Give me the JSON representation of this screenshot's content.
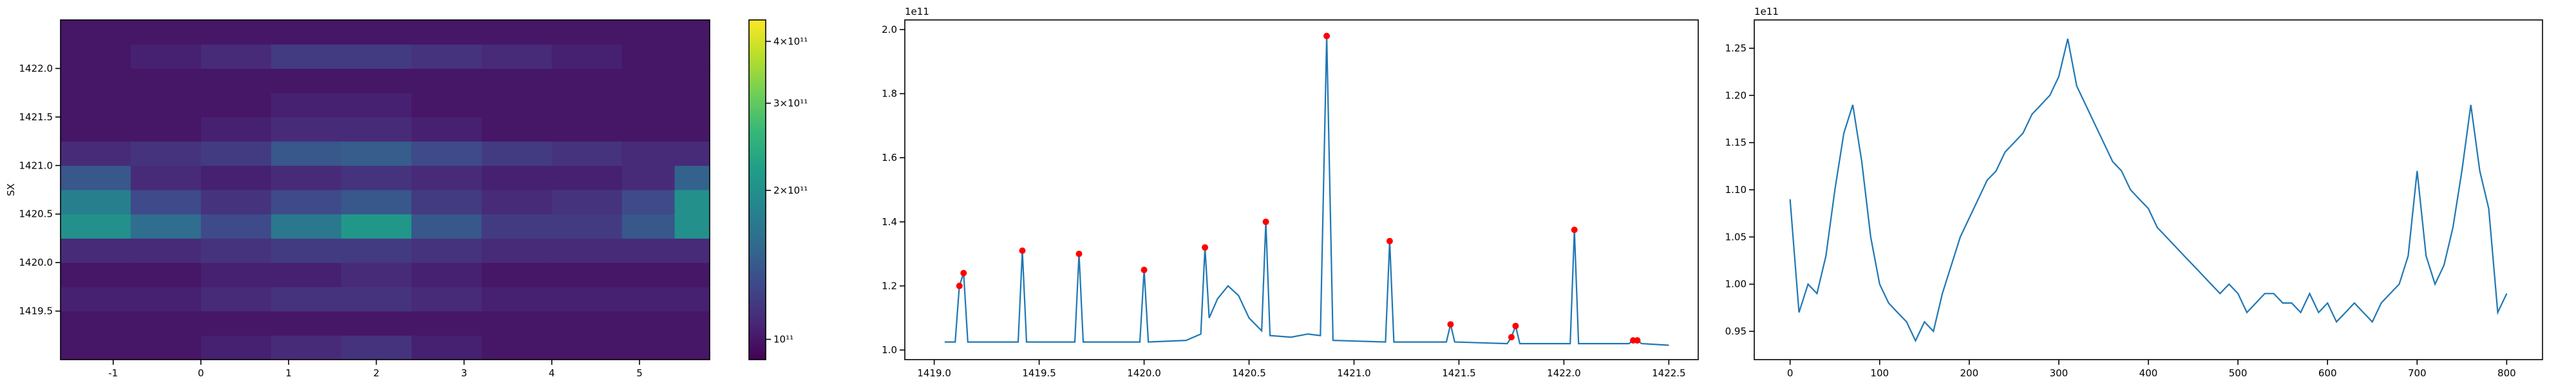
{
  "chart_data": [
    {
      "type": "heatmap",
      "ylabel": "SX",
      "xbins": [
        -1.6,
        -0.8,
        0,
        0.8,
        1.6,
        2.4,
        3.2,
        4.0,
        4.8,
        5.4,
        5.8
      ],
      "ybins": [
        1419.0,
        1419.25,
        1419.5,
        1419.75,
        1420.0,
        1420.25,
        1420.5,
        1420.75,
        1421.0,
        1421.25,
        1421.5,
        1421.75,
        1422.0,
        1422.25,
        1422.5
      ],
      "values": [
        [
          1.0,
          1.0,
          1.05,
          1.1,
          1.15,
          1.05,
          1.0,
          1.0,
          1.0,
          1.0
        ],
        [
          1.0,
          1.0,
          1.0,
          1.0,
          1.0,
          1.0,
          1.0,
          1.0,
          1.0,
          1.0
        ],
        [
          1.05,
          1.05,
          1.1,
          1.15,
          1.15,
          1.1,
          1.05,
          1.05,
          1.05,
          1.05
        ],
        [
          1.0,
          1.0,
          1.05,
          1.05,
          1.1,
          1.05,
          1.0,
          1.0,
          1.0,
          1.0
        ],
        [
          1.1,
          1.1,
          1.15,
          1.2,
          1.2,
          1.15,
          1.1,
          1.1,
          1.1,
          1.1
        ],
        [
          2.0,
          1.6,
          1.3,
          1.7,
          2.1,
          1.4,
          1.2,
          1.2,
          1.4,
          2.0
        ],
        [
          1.8,
          1.3,
          1.15,
          1.3,
          1.4,
          1.2,
          1.1,
          1.15,
          1.3,
          2.0
        ],
        [
          1.4,
          1.1,
          1.05,
          1.1,
          1.15,
          1.1,
          1.05,
          1.05,
          1.1,
          1.5
        ],
        [
          1.1,
          1.15,
          1.2,
          1.4,
          1.45,
          1.3,
          1.2,
          1.15,
          1.1,
          1.1
        ],
        [
          1.0,
          1.0,
          1.05,
          1.1,
          1.1,
          1.05,
          1.0,
          1.0,
          1.0,
          1.0
        ],
        [
          1.0,
          1.0,
          1.0,
          1.05,
          1.05,
          1.0,
          1.0,
          1.0,
          1.0,
          1.0
        ],
        [
          1.0,
          1.0,
          1.0,
          1.0,
          1.0,
          1.0,
          1.0,
          1.0,
          1.0,
          1.0
        ],
        [
          1.0,
          1.05,
          1.1,
          1.2,
          1.2,
          1.15,
          1.1,
          1.05,
          1.0,
          1.0
        ],
        [
          1.0,
          1.0,
          1.0,
          1.0,
          1.0,
          1.0,
          1.0,
          1.0,
          1.0,
          1.0
        ]
      ],
      "xlim": [
        -1.6,
        5.8
      ],
      "xticks": [
        -1,
        0,
        1,
        2,
        3,
        4,
        5
      ],
      "ylim": [
        1419.0,
        1422.5
      ],
      "yticks": [
        1419.5,
        {
          "value": 1420.0,
          "label": "1420.0"
        },
        1420.5,
        {
          "value": 1421.0,
          "label": "1421.0"
        },
        1421.5,
        {
          "value": 1422.0,
          "label": "1422.0"
        }
      ],
      "colorbar": {
        "scale": "log",
        "lim": [
          0.91,
          4.42
        ],
        "ticks": [
          {
            "value": 1,
            "label": "10¹¹"
          },
          {
            "value": 2,
            "label": "2×10¹¹"
          },
          {
            "value": 3,
            "label": "3×10¹¹"
          },
          {
            "value": 4,
            "label": "4×10¹¹"
          }
        ]
      }
    },
    {
      "type": "line",
      "offset_text": "1e11",
      "color": "#1f77b4",
      "x": [
        1419.05,
        1419.1,
        1419.12,
        1419.14,
        1419.16,
        1419.4,
        1419.42,
        1419.44,
        1419.67,
        1419.69,
        1419.71,
        1419.98,
        1420.0,
        1420.02,
        1420.2,
        1420.27,
        1420.29,
        1420.31,
        1420.35,
        1420.4,
        1420.45,
        1420.5,
        1420.56,
        1420.58,
        1420.6,
        1420.7,
        1420.78,
        1420.84,
        1420.87,
        1420.9,
        1421.15,
        1421.17,
        1421.19,
        1421.44,
        1421.46,
        1421.48,
        1421.73,
        1421.75,
        1421.77,
        1421.79,
        1422.03,
        1422.05,
        1422.07,
        1422.31,
        1422.33,
        1422.35,
        1422.37,
        1422.5
      ],
      "values": [
        1.025,
        1.025,
        1.2,
        1.24,
        1.025,
        1.025,
        1.31,
        1.025,
        1.025,
        1.3,
        1.025,
        1.025,
        1.25,
        1.025,
        1.03,
        1.05,
        1.32,
        1.1,
        1.16,
        1.2,
        1.17,
        1.1,
        1.06,
        1.4,
        1.045,
        1.04,
        1.05,
        1.045,
        1.98,
        1.03,
        1.025,
        1.34,
        1.025,
        1.025,
        1.08,
        1.025,
        1.02,
        1.04,
        1.075,
        1.02,
        1.02,
        1.375,
        1.02,
        1.02,
        1.03,
        1.03,
        1.02,
        1.015
      ],
      "peaks": {
        "color": "red",
        "x": [
          1419.12,
          1419.14,
          1419.42,
          1419.69,
          1420.0,
          1420.29,
          1420.58,
          1420.87,
          1421.17,
          1421.46,
          1421.75,
          1421.77,
          1422.05,
          1422.33,
          1422.35
        ],
        "values": [
          1.2,
          1.24,
          1.31,
          1.3,
          1.25,
          1.32,
          1.4,
          1.98,
          1.34,
          1.08,
          1.04,
          1.075,
          1.375,
          1.03,
          1.03
        ]
      },
      "xlim": [
        1418.86,
        1422.64
      ],
      "xticks": [
        {
          "value": 1419.0,
          "label": "1419.0"
        },
        1419.5,
        {
          "value": 1420.0,
          "label": "1420.0"
        },
        1420.5,
        {
          "value": 1421.0,
          "label": "1421.0"
        },
        1421.5,
        {
          "value": 1422.0,
          "label": "1422.0"
        },
        1422.5
      ],
      "ylim": [
        0.97,
        2.03
      ],
      "yticks": [
        {
          "value": 1.0,
          "label": "1.0"
        },
        1.2,
        1.4,
        1.6,
        1.8,
        {
          "value": 2.0,
          "label": "2.0"
        }
      ]
    },
    {
      "type": "line",
      "offset_text": "1e11",
      "color": "#1f77b4",
      "x": [
        0,
        10,
        20,
        30,
        40,
        50,
        60,
        70,
        80,
        90,
        100,
        110,
        120,
        130,
        140,
        150,
        160,
        170,
        180,
        190,
        200,
        210,
        220,
        230,
        240,
        250,
        260,
        270,
        280,
        290,
        300,
        310,
        320,
        330,
        340,
        350,
        360,
        370,
        380,
        390,
        400,
        410,
        420,
        430,
        440,
        450,
        460,
        470,
        480,
        490,
        500,
        510,
        520,
        530,
        540,
        550,
        560,
        570,
        580,
        590,
        600,
        610,
        620,
        630,
        640,
        650,
        660,
        670,
        680,
        690,
        700,
        710,
        720,
        730,
        740,
        750,
        760,
        770,
        780,
        790,
        800
      ],
      "values": [
        1.09,
        0.97,
        1.0,
        0.99,
        1.03,
        1.1,
        1.16,
        1.19,
        1.13,
        1.05,
        1.0,
        0.98,
        0.97,
        0.96,
        0.94,
        0.96,
        0.95,
        0.99,
        1.02,
        1.05,
        1.07,
        1.09,
        1.11,
        1.12,
        1.14,
        1.15,
        1.16,
        1.18,
        1.19,
        1.2,
        1.22,
        1.26,
        1.21,
        1.19,
        1.17,
        1.15,
        1.13,
        1.12,
        1.1,
        1.09,
        1.08,
        1.06,
        1.05,
        1.04,
        1.03,
        1.02,
        1.01,
        1.0,
        0.99,
        1.0,
        0.99,
        0.97,
        0.98,
        0.99,
        0.99,
        0.98,
        0.98,
        0.97,
        0.99,
        0.97,
        0.98,
        0.96,
        0.97,
        0.98,
        0.97,
        0.96,
        0.98,
        0.99,
        1.0,
        1.03,
        1.12,
        1.03,
        1.0,
        1.02,
        1.06,
        1.12,
        1.19,
        1.12,
        1.08,
        0.97,
        0.99
      ],
      "xlim": [
        -40,
        840
      ],
      "xticks": [
        0,
        100,
        200,
        300,
        400,
        500,
        600,
        700,
        800
      ],
      "ylim": [
        0.92,
        1.28
      ],
      "yticks": [
        0.95,
        {
          "value": 1.0,
          "label": "1.00"
        },
        1.05,
        {
          "value": 1.1,
          "label": "1.10"
        },
        1.15,
        {
          "value": 1.2,
          "label": "1.20"
        },
        1.25
      ]
    }
  ]
}
